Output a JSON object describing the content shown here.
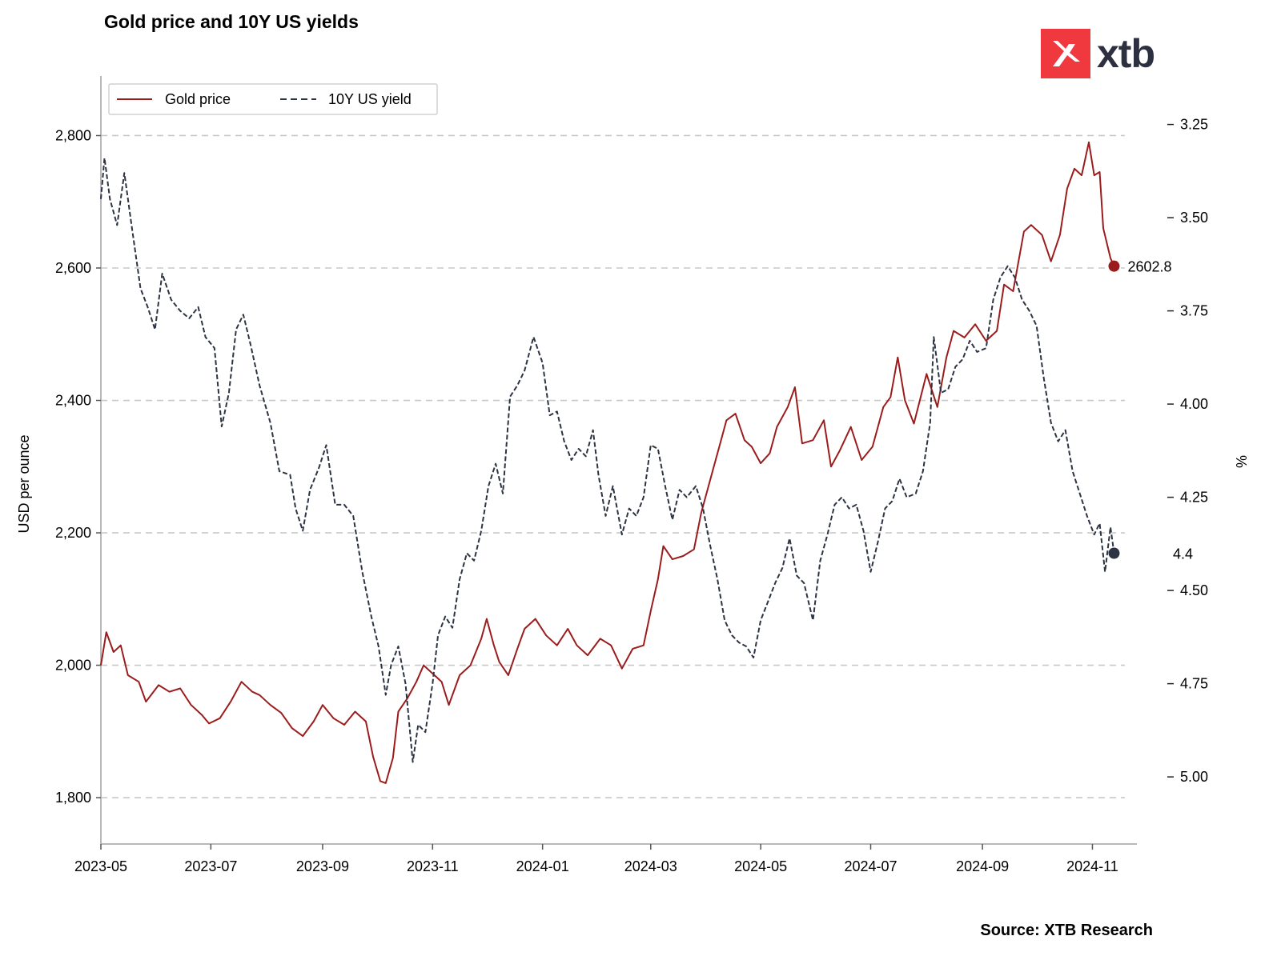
{
  "title": "Gold price and 10Y US yields",
  "source": "Source: XTB Research",
  "logo": {
    "text": "xtb",
    "color": "#f0383f"
  },
  "chart_data": {
    "type": "line",
    "title": "Gold price and 10Y US yields",
    "x_ticks": [
      "2023-05",
      "2023-07",
      "2023-09",
      "2023-11",
      "2024-01",
      "2024-03",
      "2024-05",
      "2024-07",
      "2024-09",
      "2024-11"
    ],
    "x_range": [
      "2023-05-01",
      "2024-11-19"
    ],
    "y_left": {
      "label": "USD per ounce",
      "range": [
        1730,
        2890
      ],
      "ticks": [
        1800,
        2000,
        2200,
        2400,
        2600,
        2800
      ],
      "tick_labels": [
        "1,800",
        "2,000",
        "2,200",
        "2,400",
        "2,600",
        "2,800"
      ]
    },
    "y_right": {
      "label": "%",
      "range": [
        3.12,
        5.18
      ],
      "inverted": true,
      "ticks": [
        3.25,
        3.5,
        3.75,
        4.0,
        4.25,
        4.5,
        4.75,
        5.0
      ],
      "tick_labels": [
        "3.25",
        "3.50",
        "3.75",
        "4.00",
        "4.25",
        "4.50",
        "4.75",
        "5.00"
      ]
    },
    "grid": "horizontal dashed",
    "legend_position": "top-left",
    "series": [
      {
        "name": "Gold price",
        "axis": "left",
        "color": "#9b1c1c",
        "style": "solid",
        "last_label": "2602.8",
        "points": [
          [
            "2023-05-01",
            2000
          ],
          [
            "2023-05-04",
            2050
          ],
          [
            "2023-05-08",
            2020
          ],
          [
            "2023-05-12",
            2030
          ],
          [
            "2023-05-16",
            1985
          ],
          [
            "2023-05-22",
            1975
          ],
          [
            "2023-05-26",
            1945
          ],
          [
            "2023-06-02",
            1970
          ],
          [
            "2023-06-08",
            1960
          ],
          [
            "2023-06-14",
            1965
          ],
          [
            "2023-06-20",
            1940
          ],
          [
            "2023-06-26",
            1925
          ],
          [
            "2023-06-30",
            1912
          ],
          [
            "2023-07-06",
            1920
          ],
          [
            "2023-07-12",
            1945
          ],
          [
            "2023-07-18",
            1975
          ],
          [
            "2023-07-24",
            1960
          ],
          [
            "2023-07-28",
            1955
          ],
          [
            "2023-08-03",
            1940
          ],
          [
            "2023-08-09",
            1928
          ],
          [
            "2023-08-15",
            1905
          ],
          [
            "2023-08-21",
            1893
          ],
          [
            "2023-08-27",
            1915
          ],
          [
            "2023-09-01",
            1940
          ],
          [
            "2023-09-07",
            1920
          ],
          [
            "2023-09-13",
            1910
          ],
          [
            "2023-09-19",
            1930
          ],
          [
            "2023-09-25",
            1915
          ],
          [
            "2023-09-29",
            1862
          ],
          [
            "2023-10-03",
            1825
          ],
          [
            "2023-10-06",
            1822
          ],
          [
            "2023-10-10",
            1860
          ],
          [
            "2023-10-13",
            1930
          ],
          [
            "2023-10-18",
            1950
          ],
          [
            "2023-10-23",
            1975
          ],
          [
            "2023-10-27",
            2000
          ],
          [
            "2023-11-02",
            1985
          ],
          [
            "2023-11-06",
            1975
          ],
          [
            "2023-11-10",
            1940
          ],
          [
            "2023-11-16",
            1985
          ],
          [
            "2023-11-22",
            2000
          ],
          [
            "2023-11-28",
            2040
          ],
          [
            "2023-12-01",
            2070
          ],
          [
            "2023-12-05",
            2030
          ],
          [
            "2023-12-08",
            2005
          ],
          [
            "2023-12-13",
            1985
          ],
          [
            "2023-12-18",
            2025
          ],
          [
            "2023-12-22",
            2055
          ],
          [
            "2023-12-28",
            2070
          ],
          [
            "2024-01-03",
            2045
          ],
          [
            "2024-01-09",
            2030
          ],
          [
            "2024-01-15",
            2055
          ],
          [
            "2024-01-20",
            2030
          ],
          [
            "2024-01-26",
            2015
          ],
          [
            "2024-02-02",
            2040
          ],
          [
            "2024-02-08",
            2030
          ],
          [
            "2024-02-14",
            1995
          ],
          [
            "2024-02-20",
            2025
          ],
          [
            "2024-02-26",
            2030
          ],
          [
            "2024-03-01",
            2082
          ],
          [
            "2024-03-05",
            2130
          ],
          [
            "2024-03-08",
            2180
          ],
          [
            "2024-03-13",
            2160
          ],
          [
            "2024-03-19",
            2165
          ],
          [
            "2024-03-25",
            2175
          ],
          [
            "2024-03-29",
            2230
          ],
          [
            "2024-04-04",
            2290
          ],
          [
            "2024-04-08",
            2330
          ],
          [
            "2024-04-12",
            2370
          ],
          [
            "2024-04-17",
            2380
          ],
          [
            "2024-04-22",
            2340
          ],
          [
            "2024-04-26",
            2330
          ],
          [
            "2024-05-01",
            2305
          ],
          [
            "2024-05-06",
            2320
          ],
          [
            "2024-05-10",
            2360
          ],
          [
            "2024-05-16",
            2390
          ],
          [
            "2024-05-20",
            2420
          ],
          [
            "2024-05-24",
            2335
          ],
          [
            "2024-05-30",
            2340
          ],
          [
            "2024-06-05",
            2370
          ],
          [
            "2024-06-09",
            2300
          ],
          [
            "2024-06-14",
            2325
          ],
          [
            "2024-06-20",
            2360
          ],
          [
            "2024-06-26",
            2310
          ],
          [
            "2024-07-02",
            2330
          ],
          [
            "2024-07-08",
            2390
          ],
          [
            "2024-07-12",
            2405
          ],
          [
            "2024-07-16",
            2465
          ],
          [
            "2024-07-20",
            2400
          ],
          [
            "2024-07-25",
            2365
          ],
          [
            "2024-08-01",
            2440
          ],
          [
            "2024-08-07",
            2390
          ],
          [
            "2024-08-12",
            2465
          ],
          [
            "2024-08-16",
            2505
          ],
          [
            "2024-08-22",
            2495
          ],
          [
            "2024-08-28",
            2515
          ],
          [
            "2024-09-03",
            2490
          ],
          [
            "2024-09-09",
            2505
          ],
          [
            "2024-09-13",
            2575
          ],
          [
            "2024-09-18",
            2565
          ],
          [
            "2024-09-24",
            2655
          ],
          [
            "2024-09-28",
            2665
          ],
          [
            "2024-10-04",
            2650
          ],
          [
            "2024-10-09",
            2610
          ],
          [
            "2024-10-14",
            2650
          ],
          [
            "2024-10-18",
            2720
          ],
          [
            "2024-10-22",
            2750
          ],
          [
            "2024-10-26",
            2740
          ],
          [
            "2024-10-30",
            2790
          ],
          [
            "2024-11-02",
            2740
          ],
          [
            "2024-11-05",
            2745
          ],
          [
            "2024-11-07",
            2660
          ],
          [
            "2024-11-11",
            2615
          ],
          [
            "2024-11-13",
            2602.8
          ]
        ]
      },
      {
        "name": "10Y US yield",
        "axis": "right",
        "color": "#2c3342",
        "style": "dashed",
        "last_label": "4.4",
        "points": [
          [
            "2023-05-01",
            3.45
          ],
          [
            "2023-05-03",
            3.34
          ],
          [
            "2023-05-06",
            3.45
          ],
          [
            "2023-05-10",
            3.52
          ],
          [
            "2023-05-14",
            3.38
          ],
          [
            "2023-05-18",
            3.52
          ],
          [
            "2023-05-23",
            3.69
          ],
          [
            "2023-05-27",
            3.74
          ],
          [
            "2023-05-31",
            3.8
          ],
          [
            "2023-06-04",
            3.65
          ],
          [
            "2023-06-09",
            3.72
          ],
          [
            "2023-06-14",
            3.75
          ],
          [
            "2023-06-19",
            3.77
          ],
          [
            "2023-06-24",
            3.74
          ],
          [
            "2023-06-28",
            3.82
          ],
          [
            "2023-07-03",
            3.85
          ],
          [
            "2023-07-07",
            4.06
          ],
          [
            "2023-07-11",
            3.97
          ],
          [
            "2023-07-15",
            3.8
          ],
          [
            "2023-07-19",
            3.76
          ],
          [
            "2023-07-23",
            3.84
          ],
          [
            "2023-07-28",
            3.95
          ],
          [
            "2023-08-03",
            4.05
          ],
          [
            "2023-08-08",
            4.18
          ],
          [
            "2023-08-14",
            4.19
          ],
          [
            "2023-08-17",
            4.28
          ],
          [
            "2023-08-21",
            4.34
          ],
          [
            "2023-08-25",
            4.23
          ],
          [
            "2023-08-30",
            4.17
          ],
          [
            "2023-09-03",
            4.11
          ],
          [
            "2023-09-08",
            4.27
          ],
          [
            "2023-09-13",
            4.27
          ],
          [
            "2023-09-18",
            4.3
          ],
          [
            "2023-09-23",
            4.45
          ],
          [
            "2023-09-28",
            4.57
          ],
          [
            "2023-10-02",
            4.65
          ],
          [
            "2023-10-06",
            4.78
          ],
          [
            "2023-10-09",
            4.7
          ],
          [
            "2023-10-13",
            4.65
          ],
          [
            "2023-10-17",
            4.75
          ],
          [
            "2023-10-21",
            4.96
          ],
          [
            "2023-10-24",
            4.86
          ],
          [
            "2023-10-28",
            4.88
          ],
          [
            "2023-11-01",
            4.75
          ],
          [
            "2023-11-04",
            4.62
          ],
          [
            "2023-11-08",
            4.57
          ],
          [
            "2023-11-12",
            4.6
          ],
          [
            "2023-11-16",
            4.47
          ],
          [
            "2023-11-20",
            4.4
          ],
          [
            "2023-11-24",
            4.42
          ],
          [
            "2023-11-28",
            4.34
          ],
          [
            "2023-12-02",
            4.22
          ],
          [
            "2023-12-06",
            4.16
          ],
          [
            "2023-12-10",
            4.24
          ],
          [
            "2023-12-14",
            3.98
          ],
          [
            "2023-12-18",
            3.95
          ],
          [
            "2023-12-22",
            3.91
          ],
          [
            "2023-12-27",
            3.82
          ],
          [
            "2024-01-01",
            3.89
          ],
          [
            "2024-01-05",
            4.03
          ],
          [
            "2024-01-09",
            4.02
          ],
          [
            "2024-01-13",
            4.1
          ],
          [
            "2024-01-17",
            4.15
          ],
          [
            "2024-01-21",
            4.12
          ],
          [
            "2024-01-25",
            4.14
          ],
          [
            "2024-01-29",
            4.07
          ],
          [
            "2024-02-01",
            4.19
          ],
          [
            "2024-02-05",
            4.3
          ],
          [
            "2024-02-09",
            4.22
          ],
          [
            "2024-02-14",
            4.35
          ],
          [
            "2024-02-18",
            4.28
          ],
          [
            "2024-02-22",
            4.3
          ],
          [
            "2024-02-26",
            4.25
          ],
          [
            "2024-03-01",
            4.11
          ],
          [
            "2024-03-05",
            4.12
          ],
          [
            "2024-03-09",
            4.22
          ],
          [
            "2024-03-13",
            4.31
          ],
          [
            "2024-03-17",
            4.23
          ],
          [
            "2024-03-21",
            4.25
          ],
          [
            "2024-03-26",
            4.22
          ],
          [
            "2024-03-30",
            4.28
          ],
          [
            "2024-04-03",
            4.38
          ],
          [
            "2024-04-07",
            4.47
          ],
          [
            "2024-04-11",
            4.58
          ],
          [
            "2024-04-15",
            4.62
          ],
          [
            "2024-04-19",
            4.64
          ],
          [
            "2024-04-23",
            4.65
          ],
          [
            "2024-04-27",
            4.68
          ],
          [
            "2024-05-01",
            4.58
          ],
          [
            "2024-05-05",
            4.53
          ],
          [
            "2024-05-09",
            4.48
          ],
          [
            "2024-05-13",
            4.44
          ],
          [
            "2024-05-17",
            4.36
          ],
          [
            "2024-05-21",
            4.46
          ],
          [
            "2024-05-25",
            4.48
          ],
          [
            "2024-05-30",
            4.58
          ],
          [
            "2024-06-03",
            4.42
          ],
          [
            "2024-06-07",
            4.35
          ],
          [
            "2024-06-11",
            4.27
          ],
          [
            "2024-06-15",
            4.25
          ],
          [
            "2024-06-19",
            4.28
          ],
          [
            "2024-06-23",
            4.27
          ],
          [
            "2024-06-27",
            4.34
          ],
          [
            "2024-07-01",
            4.45
          ],
          [
            "2024-07-05",
            4.37
          ],
          [
            "2024-07-09",
            4.28
          ],
          [
            "2024-07-13",
            4.26
          ],
          [
            "2024-07-17",
            4.2
          ],
          [
            "2024-07-21",
            4.25
          ],
          [
            "2024-07-26",
            4.24
          ],
          [
            "2024-07-30",
            4.18
          ],
          [
            "2024-08-03",
            4.05
          ],
          [
            "2024-08-05",
            3.82
          ],
          [
            "2024-08-09",
            3.97
          ],
          [
            "2024-08-13",
            3.96
          ],
          [
            "2024-08-17",
            3.9
          ],
          [
            "2024-08-21",
            3.88
          ],
          [
            "2024-08-25",
            3.83
          ],
          [
            "2024-08-29",
            3.86
          ],
          [
            "2024-09-03",
            3.85
          ],
          [
            "2024-09-07",
            3.72
          ],
          [
            "2024-09-11",
            3.66
          ],
          [
            "2024-09-15",
            3.63
          ],
          [
            "2024-09-19",
            3.66
          ],
          [
            "2024-09-23",
            3.72
          ],
          [
            "2024-09-27",
            3.75
          ],
          [
            "2024-10-01",
            3.79
          ],
          [
            "2024-10-05",
            3.93
          ],
          [
            "2024-10-09",
            4.05
          ],
          [
            "2024-10-13",
            4.1
          ],
          [
            "2024-10-17",
            4.07
          ],
          [
            "2024-10-21",
            4.18
          ],
          [
            "2024-10-25",
            4.24
          ],
          [
            "2024-10-29",
            4.3
          ],
          [
            "2024-11-02",
            4.35
          ],
          [
            "2024-11-05",
            4.32
          ],
          [
            "2024-11-08",
            4.45
          ],
          [
            "2024-11-11",
            4.33
          ],
          [
            "2024-11-13",
            4.4
          ]
        ]
      }
    ]
  }
}
